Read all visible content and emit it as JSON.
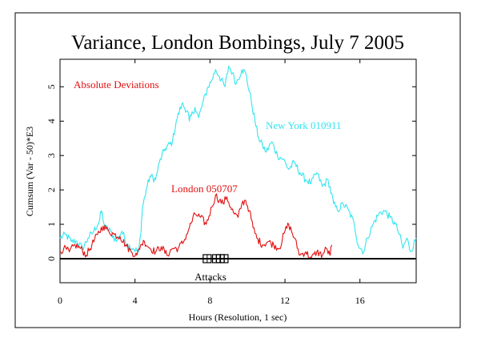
{
  "chart_data": {
    "type": "line",
    "title": "Variance, London Bombings, July 7 2005",
    "xlabel": "Hours (Resolution, 1 sec)",
    "ylabel": "Cumsum (Var - 50)*E3",
    "xlim": [
      0,
      19
    ],
    "ylim": [
      -0.7,
      5.8
    ],
    "x_ticks": [
      0,
      4,
      8,
      12,
      16
    ],
    "y_ticks": [
      0,
      1,
      2,
      3,
      4,
      5
    ],
    "grid": false,
    "annotations": {
      "absolute_deviations": "Absolute Deviations",
      "attacks": "Attacks"
    },
    "attack_markers_hours": [
      7.85,
      8.35,
      8.55,
      8.75
    ],
    "series": [
      {
        "name": "New York 010911",
        "color": "#33e5f0",
        "x": [
          0,
          0.3,
          0.6,
          0.9,
          1.2,
          1.5,
          1.8,
          2.1,
          2.2,
          2.4,
          2.7,
          3.0,
          3.3,
          3.6,
          3.9,
          4.2,
          4.3,
          4.4,
          4.6,
          4.8,
          5.1,
          5.3,
          5.6,
          6.0,
          6.2,
          6.5,
          6.8,
          6.9,
          7.2,
          7.4,
          7.6,
          7.9,
          8.1,
          8.3,
          8.5,
          8.8,
          9.0,
          9.2,
          9.4,
          9.7,
          9.9,
          10.2,
          10.4,
          10.6,
          10.8,
          11.0,
          11.3,
          11.6,
          11.9,
          12.2,
          12.5,
          12.8,
          13.1,
          13.4,
          13.7,
          14.0,
          14.3,
          14.6,
          14.8,
          15.1,
          15.4,
          15.7,
          15.9,
          16.2,
          16.4,
          16.7,
          17.0,
          17.3,
          17.6,
          17.9,
          18.1,
          18.3,
          18.5,
          18.7,
          19.0
        ],
        "y": [
          0.6,
          0.7,
          0.5,
          0.5,
          0.3,
          0.6,
          0.8,
          1.1,
          1.4,
          0.9,
          0.8,
          0.5,
          0.8,
          0.4,
          0.3,
          0.2,
          0.7,
          1.5,
          2.0,
          2.4,
          2.3,
          2.8,
          3.2,
          3.4,
          4.0,
          4.5,
          4.3,
          4.0,
          4.4,
          4.1,
          4.5,
          5.0,
          5.2,
          5.5,
          5.3,
          5.0,
          5.6,
          5.4,
          5.1,
          5.5,
          5.4,
          4.6,
          4.0,
          3.5,
          3.3,
          3.1,
          3.4,
          3.0,
          2.9,
          2.6,
          2.8,
          2.5,
          2.3,
          2.2,
          2.5,
          2.1,
          2.3,
          1.6,
          1.4,
          1.6,
          1.4,
          1.0,
          0.4,
          0.2,
          0.6,
          1.0,
          1.3,
          1.4,
          1.2,
          1.0,
          0.7,
          0.3,
          0.6,
          0.2,
          0.6
        ]
      },
      {
        "name": "London 050707",
        "color": "#e01010",
        "x": [
          0,
          0.2,
          0.5,
          0.8,
          1.1,
          1.4,
          1.7,
          2.0,
          2.3,
          2.6,
          2.9,
          3.2,
          3.5,
          3.8,
          4.1,
          4.3,
          4.5,
          4.8,
          5.1,
          5.4,
          5.7,
          6.0,
          6.3,
          6.6,
          6.9,
          7.2,
          7.5,
          7.8,
          8.1,
          8.3,
          8.5,
          8.7,
          8.9,
          9.1,
          9.3,
          9.5,
          9.7,
          9.9,
          10.1,
          10.3,
          10.5,
          10.8,
          11.1,
          11.4,
          11.7,
          12.0,
          12.2,
          12.5,
          12.8,
          13.1,
          13.4,
          13.7,
          14.0,
          14.2,
          14.4,
          14.5
        ],
        "y": [
          0.2,
          0.3,
          0.2,
          0.4,
          0.3,
          0.1,
          0.4,
          0.7,
          0.95,
          0.8,
          0.7,
          0.65,
          0.4,
          0.2,
          0.1,
          0.4,
          0.5,
          0.3,
          0.2,
          0.35,
          0.1,
          0.3,
          0.3,
          0.5,
          0.9,
          1.3,
          1.2,
          1.0,
          1.5,
          1.85,
          1.7,
          1.6,
          1.8,
          1.5,
          1.3,
          1.2,
          1.6,
          1.7,
          1.4,
          0.9,
          0.6,
          0.4,
          0.5,
          0.4,
          0.3,
          0.8,
          1.0,
          0.6,
          0.1,
          0.2,
          0.0,
          0.2,
          0.1,
          0.3,
          0.1,
          0.4
        ]
      }
    ]
  },
  "labels": {
    "new_york": "New York 010911",
    "london": "London 050707"
  },
  "colors": {
    "new_york": "#33e5f0",
    "london": "#e01010",
    "axis": "#000000"
  }
}
